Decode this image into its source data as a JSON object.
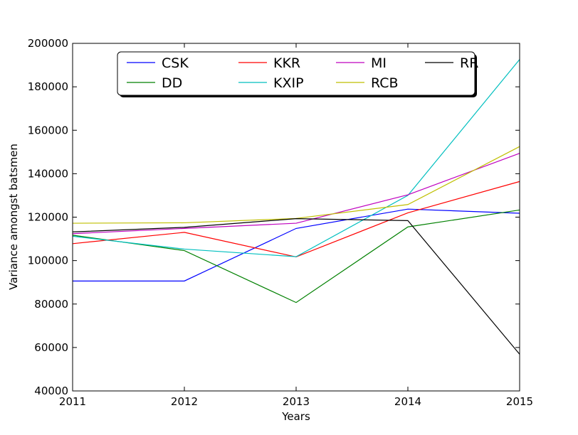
{
  "chart_data": {
    "type": "line",
    "title": "",
    "xlabel": "Years",
    "ylabel": "Variance amongst batsmen",
    "x": [
      2011,
      2012,
      2013,
      2014,
      2015
    ],
    "xlim": [
      2011,
      2015
    ],
    "ylim": [
      40000,
      200000
    ],
    "x_ticks": [
      "2011",
      "2012",
      "2013",
      "2014",
      "2015"
    ],
    "y_ticks": [
      "40000",
      "60000",
      "80000",
      "100000",
      "120000",
      "140000",
      "160000",
      "180000",
      "200000"
    ],
    "grid": false,
    "legend_position": "top-center",
    "series": [
      {
        "name": "CSK",
        "color": "#0000ff",
        "values": [
          90600,
          90600,
          114800,
          123700,
          121800
        ]
      },
      {
        "name": "DD",
        "color": "#008000",
        "values": [
          111700,
          104600,
          80700,
          115500,
          123300
        ]
      },
      {
        "name": "KKR",
        "color": "#ff0000",
        "values": [
          107800,
          113000,
          101700,
          122000,
          136400
        ]
      },
      {
        "name": "KXIP",
        "color": "#00bfbf",
        "values": [
          111200,
          105300,
          101800,
          130000,
          192600
        ]
      },
      {
        "name": "MI",
        "color": "#bf00bf",
        "values": [
          112400,
          114800,
          117200,
          130300,
          149400
        ]
      },
      {
        "name": "RCB",
        "color": "#bfbf00",
        "values": [
          117200,
          117400,
          119400,
          125800,
          152500
        ]
      },
      {
        "name": "RR",
        "color": "#000000",
        "values": [
          113200,
          115300,
          119300,
          118400,
          56900
        ]
      }
    ]
  }
}
